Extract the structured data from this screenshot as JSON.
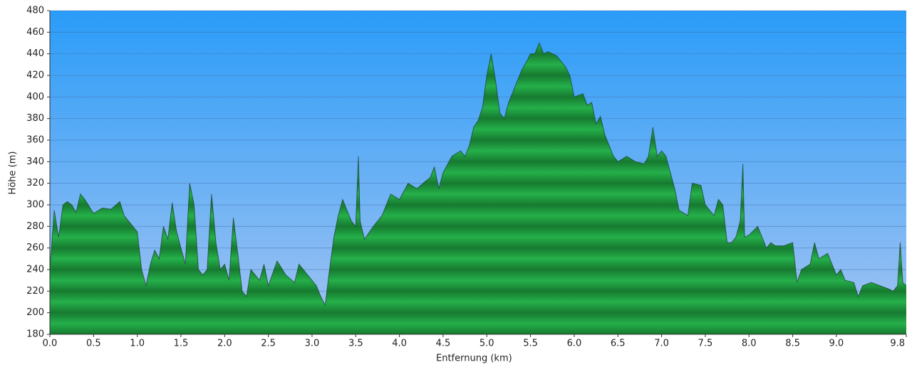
{
  "chart_data": {
    "type": "area",
    "xlabel": "Entfernung   (km)",
    "ylabel": "Höhe (m)",
    "color": "#1f9a3c",
    "line_color": "#1d3a2a",
    "grid": true,
    "xlim": [
      0,
      9.8
    ],
    "ylim": [
      180,
      480
    ],
    "xticks": [
      {
        "value": 0,
        "label": "0.0"
      },
      0.5,
      {
        "value": 1,
        "label": "1.0"
      },
      1.5,
      {
        "value": 2,
        "label": "2.0"
      },
      2.5,
      {
        "value": 3,
        "label": "3.0"
      },
      3.5,
      {
        "value": 4,
        "label": "4.0"
      },
      4.5,
      {
        "value": 5,
        "label": "5.0"
      },
      5.5,
      {
        "value": 6,
        "label": "6.0"
      },
      6.5,
      {
        "value": 7,
        "label": "7.0"
      },
      7.5,
      {
        "value": 8,
        "label": "8.0"
      },
      8.5,
      {
        "value": 9,
        "label": "9.0"
      },
      9.8
    ],
    "yticks": [
      180,
      200,
      220,
      240,
      260,
      280,
      300,
      320,
      340,
      360,
      380,
      400,
      420,
      440,
      460,
      480
    ],
    "x": [
      0,
      0.05,
      0.1,
      0.15,
      0.2,
      0.25,
      0.3,
      0.35,
      0.4,
      0.5,
      0.6,
      0.7,
      0.8,
      0.85,
      0.9,
      1.0,
      1.05,
      1.1,
      1.15,
      1.2,
      1.25,
      1.3,
      1.35,
      1.4,
      1.45,
      1.5,
      1.55,
      1.6,
      1.65,
      1.7,
      1.75,
      1.8,
      1.85,
      1.9,
      1.95,
      2.0,
      2.05,
      2.1,
      2.15,
      2.2,
      2.25,
      2.3,
      2.4,
      2.45,
      2.5,
      2.6,
      2.7,
      2.8,
      2.85,
      2.9,
      3.0,
      3.05,
      3.1,
      3.15,
      3.2,
      3.25,
      3.3,
      3.35,
      3.4,
      3.45,
      3.5,
      3.53,
      3.55,
      3.6,
      3.7,
      3.8,
      3.9,
      4.0,
      4.1,
      4.2,
      4.3,
      4.35,
      4.4,
      4.45,
      4.5,
      4.6,
      4.7,
      4.75,
      4.8,
      4.85,
      4.9,
      4.95,
      5.0,
      5.05,
      5.1,
      5.15,
      5.2,
      5.25,
      5.3,
      5.35,
      5.4,
      5.45,
      5.5,
      5.55,
      5.6,
      5.65,
      5.7,
      5.8,
      5.9,
      5.95,
      6.0,
      6.1,
      6.15,
      6.2,
      6.25,
      6.3,
      6.35,
      6.4,
      6.45,
      6.5,
      6.6,
      6.7,
      6.8,
      6.85,
      6.9,
      6.95,
      7.0,
      7.05,
      7.1,
      7.15,
      7.2,
      7.3,
      7.35,
      7.45,
      7.5,
      7.6,
      7.65,
      7.7,
      7.75,
      7.8,
      7.85,
      7.9,
      7.93,
      7.95,
      8.0,
      8.1,
      8.2,
      8.25,
      8.3,
      8.4,
      8.5,
      8.55,
      8.6,
      8.7,
      8.75,
      8.8,
      8.9,
      9.0,
      9.05,
      9.1,
      9.2,
      9.25,
      9.3,
      9.4,
      9.5,
      9.6,
      9.65,
      9.7,
      9.73,
      9.76,
      9.8
    ],
    "values": [
      240,
      295,
      270,
      300,
      303,
      300,
      293,
      310,
      305,
      292,
      297,
      296,
      303,
      290,
      285,
      275,
      240,
      225,
      245,
      258,
      250,
      280,
      268,
      302,
      275,
      260,
      245,
      320,
      300,
      240,
      235,
      240,
      310,
      265,
      240,
      245,
      230,
      288,
      255,
      220,
      215,
      240,
      230,
      245,
      225,
      248,
      235,
      228,
      245,
      240,
      230,
      225,
      215,
      207,
      240,
      270,
      290,
      305,
      295,
      285,
      280,
      345,
      285,
      268,
      280,
      290,
      310,
      305,
      320,
      315,
      322,
      325,
      335,
      315,
      330,
      345,
      350,
      345,
      355,
      372,
      378,
      390,
      420,
      440,
      415,
      385,
      380,
      395,
      405,
      415,
      425,
      432,
      440,
      440,
      450,
      440,
      442,
      438,
      428,
      420,
      400,
      403,
      392,
      395,
      375,
      382,
      365,
      355,
      345,
      340,
      345,
      340,
      338,
      345,
      372,
      345,
      350,
      345,
      330,
      315,
      295,
      290,
      320,
      318,
      300,
      290,
      305,
      300,
      265,
      265,
      270,
      285,
      338,
      270,
      272,
      280,
      260,
      265,
      262,
      262,
      265,
      228,
      240,
      245,
      265,
      250,
      255,
      235,
      240,
      230,
      228,
      215,
      225,
      228,
      225,
      222,
      220,
      225,
      265,
      228,
      225
    ]
  }
}
